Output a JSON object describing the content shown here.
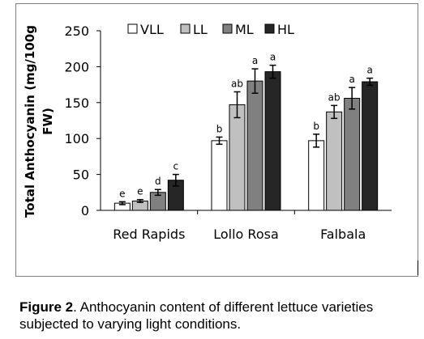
{
  "chart_data": {
    "type": "bar",
    "categories": [
      "Red Rapids",
      "Lollo Rosa",
      "Falbala"
    ],
    "ylabel_line1": "Total Anthocyanin (mg/100g",
    "ylabel_line2": "FW)",
    "ylim": [
      0,
      250
    ],
    "yticks": [
      0,
      50,
      100,
      150,
      200,
      250
    ],
    "grid": false,
    "legend_position": "top",
    "series": [
      {
        "name": "VLL",
        "color": "#ffffff",
        "values": [
          10,
          97,
          97
        ],
        "errors": [
          2,
          5,
          9
        ],
        "letters": [
          "e",
          "b",
          "b"
        ]
      },
      {
        "name": "LL",
        "color": "#c0c0c0",
        "values": [
          13,
          147,
          137
        ],
        "errors": [
          2,
          18,
          9
        ],
        "letters": [
          "e",
          "ab",
          "ab"
        ]
      },
      {
        "name": "ML",
        "color": "#808080",
        "values": [
          25,
          180,
          156
        ],
        "errors": [
          4,
          17,
          15
        ],
        "letters": [
          "d",
          "a",
          "a"
        ]
      },
      {
        "name": "HL",
        "color": "#262626",
        "values": [
          42,
          193,
          179
        ],
        "errors": [
          8,
          9,
          5
        ],
        "letters": [
          "c",
          "a",
          "a"
        ]
      }
    ]
  },
  "caption": {
    "label": "Figure 2",
    "text": ". Anthocyanin content of different lettuce varieties subjected to varying light   conditions."
  }
}
